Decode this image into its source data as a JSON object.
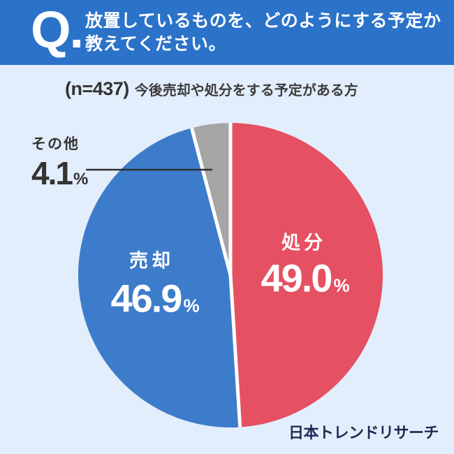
{
  "header": {
    "q_mark": "Q.",
    "title_line1": "放置しているものを、どのようにする予定か",
    "title_line2": "教えてください。",
    "bg_color": "#2b72c9",
    "text_color": "#ffffff"
  },
  "subtitle": {
    "sample_size": "(n=437)",
    "description": "今後売却や処分をする予定がある方"
  },
  "chart_data": {
    "type": "pie",
    "title": "放置しているものを、どのようにする予定か教えてください。",
    "sample_n": 437,
    "start_angle_deg": 0,
    "direction": "clockwise",
    "legend_position": "none",
    "slices": [
      {
        "label": "処分",
        "value": 49.0,
        "value_label": "49.0",
        "color": "#e55062",
        "text_color": "#ffffff"
      },
      {
        "label": "売却",
        "value": 46.9,
        "value_label": "46.9",
        "color": "#3d7cca",
        "text_color": "#ffffff"
      },
      {
        "label": "その他",
        "value": 4.1,
        "value_label": "4.1",
        "color": "#a5a5a5",
        "text_color": "#333333",
        "callout": true
      }
    ],
    "percent_sign": "%",
    "separator_color": "#ffffff",
    "callout_line_color": "#2e2e2e"
  },
  "footer": {
    "brand": "日本トレンドリサーチ",
    "color": "#1c2d55"
  },
  "colors": {
    "page_bg": "#e3eefc",
    "header_bg": "#2b72c9"
  }
}
